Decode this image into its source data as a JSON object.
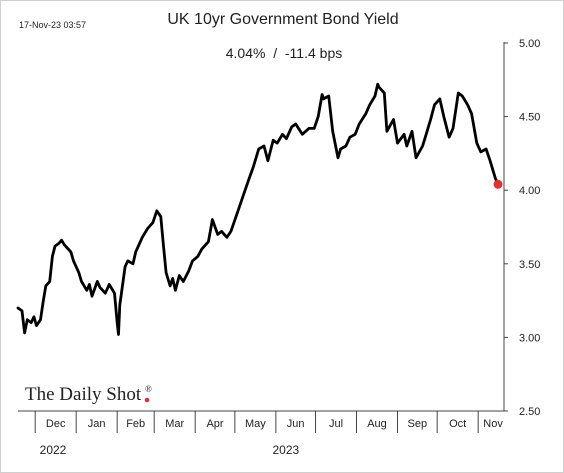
{
  "chart_data": {
    "type": "line",
    "title": "UK 10yr Government Bond Yield",
    "subtitle": "4.04%  /  -11.4 bps",
    "timestamp": "17-Nov-23 03:57",
    "brand": "The Daily Shot",
    "brand_mark": "®",
    "y_ticks": [
      "5.00",
      "4.50",
      "4.00",
      "3.50",
      "3.00",
      "2.50"
    ],
    "ylim": [
      2.5,
      5.0
    ],
    "x_months": [
      "Dec",
      "Jan",
      "Feb",
      "Mar",
      "Apr",
      "May",
      "Jun",
      "Jul",
      "Aug",
      "Sep",
      "Oct",
      "Nov"
    ],
    "x_years": [
      "2022",
      "2023"
    ],
    "grid": false,
    "legend": "none",
    "line_color": "#000000",
    "last_point_color": "#e53030",
    "series": [
      {
        "dates": [
          "2022-11-18",
          "2022-11-21",
          "2022-11-23",
          "2022-11-25",
          "2022-11-28",
          "2022-11-30",
          "2022-12-02",
          "2022-12-05",
          "2022-12-07",
          "2022-12-09",
          "2022-12-12",
          "2022-12-14",
          "2022-12-16",
          "2022-12-19",
          "2022-12-21",
          "2022-12-23",
          "2022-12-28",
          "2022-12-30",
          "2023-01-03",
          "2023-01-05",
          "2023-01-09",
          "2023-01-11",
          "2023-01-13",
          "2023-01-17",
          "2023-01-19",
          "2023-01-23",
          "2023-01-26",
          "2023-01-30",
          "2023-02-01",
          "2023-02-02",
          "2023-02-03",
          "2023-02-07",
          "2023-02-09",
          "2023-02-13",
          "2023-02-15",
          "2023-02-20",
          "2023-02-24",
          "2023-02-28",
          "2023-03-03",
          "2023-03-06",
          "2023-03-08",
          "2023-03-10",
          "2023-03-13",
          "2023-03-15",
          "2023-03-17",
          "2023-03-20",
          "2023-03-23",
          "2023-03-27",
          "2023-03-30",
          "2023-04-03",
          "2023-04-06",
          "2023-04-11",
          "2023-04-14",
          "2023-04-18",
          "2023-04-21",
          "2023-04-25",
          "2023-04-28",
          "2023-05-03",
          "2023-05-08",
          "2023-05-11",
          "2023-05-15",
          "2023-05-19",
          "2023-05-23",
          "2023-05-26",
          "2023-05-30",
          "2023-06-02",
          "2023-06-06",
          "2023-06-09",
          "2023-06-13",
          "2023-06-16",
          "2023-06-21",
          "2023-06-26",
          "2023-06-30",
          "2023-07-03",
          "2023-07-06",
          "2023-07-07",
          "2023-07-11",
          "2023-07-14",
          "2023-07-18",
          "2023-07-20",
          "2023-07-24",
          "2023-07-27",
          "2023-07-31",
          "2023-08-03",
          "2023-08-08",
          "2023-08-11",
          "2023-08-15",
          "2023-08-17",
          "2023-08-18",
          "2023-08-22",
          "2023-08-24",
          "2023-08-29",
          "2023-09-01",
          "2023-09-06",
          "2023-09-08",
          "2023-09-12",
          "2023-09-15",
          "2023-09-20",
          "2023-09-22",
          "2023-09-26",
          "2023-09-29",
          "2023-10-03",
          "2023-10-06",
          "2023-10-10",
          "2023-10-13",
          "2023-10-17",
          "2023-10-20",
          "2023-10-24",
          "2023-10-27",
          "2023-10-31",
          "2023-11-03",
          "2023-11-07",
          "2023-11-10",
          "2023-11-14",
          "2023-11-16"
        ],
        "values": [
          3.2,
          3.18,
          3.03,
          3.12,
          3.1,
          3.14,
          3.08,
          3.12,
          3.24,
          3.35,
          3.38,
          3.55,
          3.62,
          3.64,
          3.66,
          3.63,
          3.58,
          3.52,
          3.44,
          3.38,
          3.32,
          3.36,
          3.28,
          3.38,
          3.34,
          3.3,
          3.36,
          3.3,
          3.1,
          3.02,
          3.22,
          3.48,
          3.52,
          3.5,
          3.58,
          3.68,
          3.74,
          3.78,
          3.86,
          3.82,
          3.62,
          3.44,
          3.35,
          3.4,
          3.32,
          3.42,
          3.38,
          3.45,
          3.52,
          3.55,
          3.6,
          3.65,
          3.8,
          3.7,
          3.72,
          3.68,
          3.72,
          3.85,
          3.98,
          4.06,
          4.16,
          4.28,
          4.3,
          4.2,
          4.34,
          4.32,
          4.38,
          4.35,
          4.43,
          4.45,
          4.38,
          4.42,
          4.42,
          4.5,
          4.65,
          4.62,
          4.64,
          4.4,
          4.22,
          4.28,
          4.3,
          4.36,
          4.38,
          4.45,
          4.52,
          4.58,
          4.64,
          4.72,
          4.7,
          4.66,
          4.4,
          4.48,
          4.32,
          4.38,
          4.3,
          4.4,
          4.22,
          4.3,
          4.36,
          4.48,
          4.58,
          4.62,
          4.5,
          4.36,
          4.42,
          4.66,
          4.64,
          4.58,
          4.52,
          4.32,
          4.26,
          4.28,
          4.2,
          4.08,
          4.04
        ]
      }
    ],
    "last_value": 4.04
  }
}
